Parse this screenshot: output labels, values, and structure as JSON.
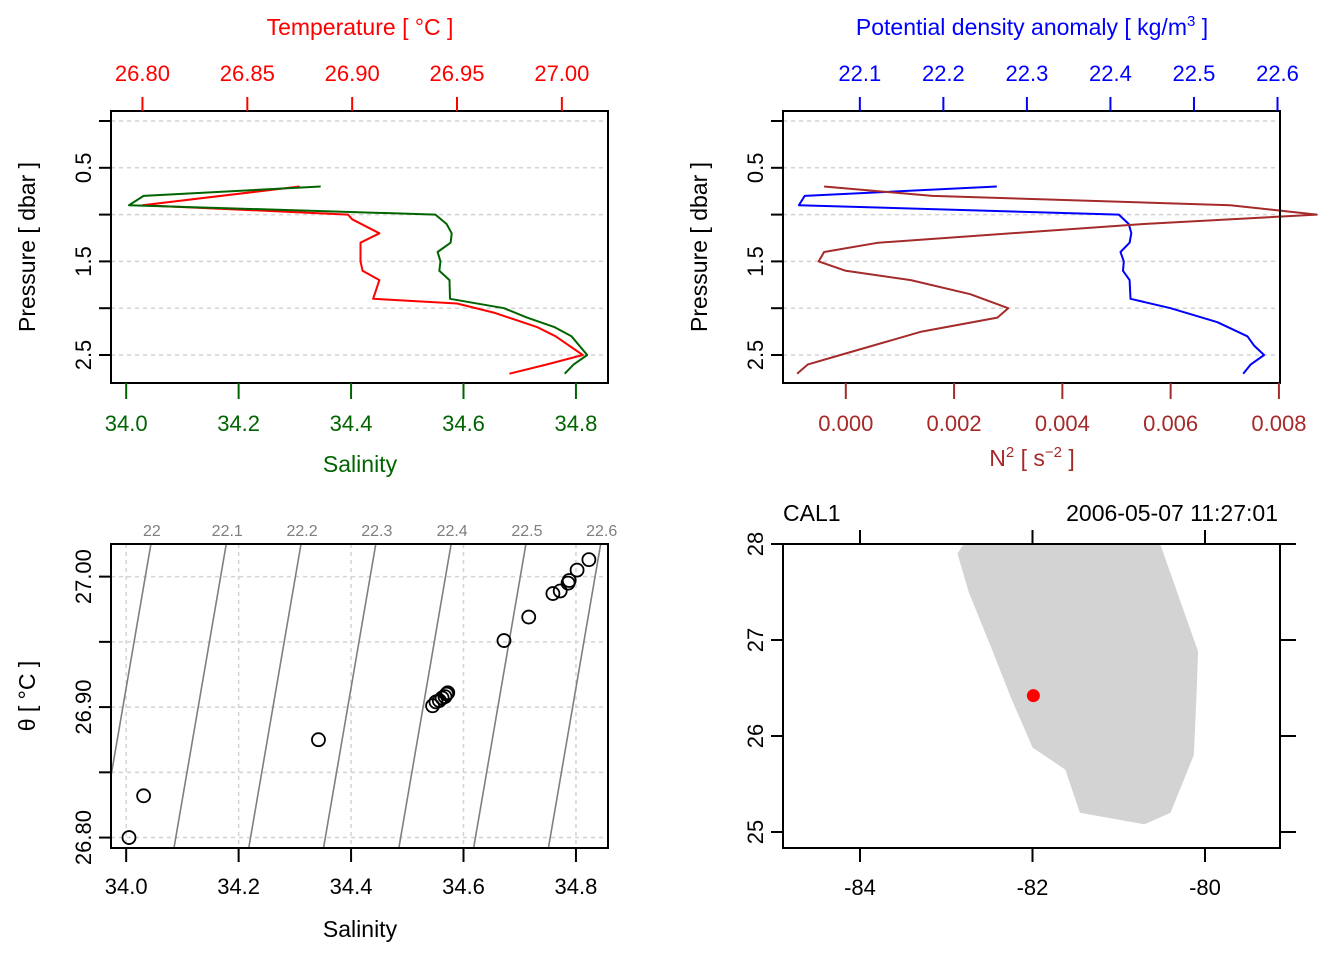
{
  "chart_data": [
    {
      "id": "profile-ts",
      "type": "line",
      "ylabel": "Pressure [ dbar ]",
      "y_ticks": [
        "0.5",
        "1.5",
        "2.5"
      ],
      "y_tick_values": [
        0.5,
        1.5,
        2.5
      ],
      "y_minor_ticks": [
        0,
        1,
        2
      ],
      "ylim": [
        2.8,
        -0.05
      ],
      "grid": true,
      "top_axis": {
        "label": "Temperature [ °C ]",
        "ticks": [
          "26.80",
          "26.85",
          "26.90",
          "26.95",
          "27.00"
        ],
        "tick_values": [
          26.8,
          26.85,
          26.9,
          26.95,
          27.0
        ],
        "color": "#ff0000",
        "range": [
          26.785,
          27.022
        ]
      },
      "bottom_axis": {
        "label": "Salinity",
        "ticks": [
          "34.0",
          "34.2",
          "34.4",
          "34.6",
          "34.8"
        ],
        "tick_values": [
          34.0,
          34.2,
          34.4,
          34.6,
          34.8
        ],
        "color": "#006400",
        "range": [
          33.973,
          34.857
        ]
      },
      "series": [
        {
          "name": "Temperature",
          "color": "#ff0000",
          "axis": "top",
          "points": [
            [
              26.875,
              0.7
            ],
            [
              26.8,
              0.9
            ],
            [
              26.898,
              1.0
            ],
            [
              26.9,
              1.05
            ],
            [
              26.913,
              1.2
            ],
            [
              26.904,
              1.3
            ],
            [
              26.904,
              1.5
            ],
            [
              26.905,
              1.6
            ],
            [
              26.913,
              1.7
            ],
            [
              26.91,
              1.9
            ],
            [
              26.95,
              1.95
            ],
            [
              26.968,
              2.05
            ],
            [
              26.988,
              2.2
            ],
            [
              26.997,
              2.3
            ],
            [
              27.01,
              2.5
            ],
            [
              26.993,
              2.6
            ],
            [
              26.975,
              2.7
            ]
          ]
        },
        {
          "name": "Salinity",
          "color": "#006400",
          "axis": "bottom",
          "points": [
            [
              34.346,
              0.7
            ],
            [
              34.031,
              0.8
            ],
            [
              34.005,
              0.9
            ],
            [
              34.55,
              1.0
            ],
            [
              34.57,
              1.1
            ],
            [
              34.579,
              1.2
            ],
            [
              34.577,
              1.3
            ],
            [
              34.554,
              1.4
            ],
            [
              34.559,
              1.5
            ],
            [
              34.557,
              1.6
            ],
            [
              34.575,
              1.7
            ],
            [
              34.576,
              1.9
            ],
            [
              34.672,
              2.0
            ],
            [
              34.713,
              2.1
            ],
            [
              34.761,
              2.2
            ],
            [
              34.792,
              2.3
            ],
            [
              34.82,
              2.5
            ],
            [
              34.796,
              2.6
            ],
            [
              34.78,
              2.7
            ]
          ]
        }
      ]
    },
    {
      "id": "profile-density-n2",
      "type": "line",
      "ylabel": "Pressure [ dbar ]",
      "y_ticks": [
        "0.5",
        "1.5",
        "2.5"
      ],
      "y_tick_values": [
        0.5,
        1.5,
        2.5
      ],
      "y_minor_ticks": [
        0,
        1,
        2
      ],
      "ylim": [
        2.8,
        -0.05
      ],
      "grid": true,
      "top_axis": {
        "label_main": "Potential density anomaly [ kg/m",
        "label_sup": "3",
        "label_end": " ]",
        "ticks": [
          "22.1",
          "22.2",
          "22.3",
          "22.4",
          "22.5",
          "22.6"
        ],
        "tick_values": [
          22.1,
          22.2,
          22.3,
          22.4,
          22.5,
          22.6
        ],
        "color": "#0000ff",
        "range": [
          22.008,
          22.603
        ]
      },
      "bottom_axis": {
        "label_main": "N",
        "label_sup": "2",
        "label_mid": " [ s",
        "label_sup2": "−2",
        "label_end": " ]",
        "ticks": [
          "0.000",
          "0.002",
          "0.004",
          "0.006",
          "0.008"
        ],
        "tick_values": [
          0.0,
          0.002,
          0.004,
          0.006,
          0.008
        ],
        "color": "#a52a2a",
        "range": [
          -0.00116,
          0.00802
        ]
      },
      "series": [
        {
          "name": "Potential density anomaly",
          "color": "#0000ff",
          "axis": "top",
          "points": [
            [
              22.264,
              0.7
            ],
            [
              22.034,
              0.8
            ],
            [
              22.027,
              0.9
            ],
            [
              22.41,
              1.0
            ],
            [
              22.422,
              1.1
            ],
            [
              22.425,
              1.2
            ],
            [
              22.423,
              1.3
            ],
            [
              22.412,
              1.4
            ],
            [
              22.416,
              1.5
            ],
            [
              22.415,
              1.6
            ],
            [
              22.423,
              1.7
            ],
            [
              22.424,
              1.9
            ],
            [
              22.472,
              2.0
            ],
            [
              22.528,
              2.15
            ],
            [
              22.564,
              2.3
            ],
            [
              22.572,
              2.4
            ],
            [
              22.584,
              2.5
            ],
            [
              22.568,
              2.6
            ],
            [
              22.559,
              2.7
            ]
          ]
        },
        {
          "name": "N2",
          "color": "#a52a2a",
          "axis": "bottom",
          "points": [
            [
              -0.0004,
              0.7
            ],
            [
              0.0016,
              0.8
            ],
            [
              0.0071,
              0.9
            ],
            [
              0.0087,
              1.0
            ],
            [
              0.0055,
              1.1
            ],
            [
              0.0006,
              1.3
            ],
            [
              -0.0004,
              1.4
            ],
            [
              -0.0005,
              1.5
            ],
            [
              0.0,
              1.6
            ],
            [
              0.0012,
              1.7
            ],
            [
              0.0023,
              1.85
            ],
            [
              0.003,
              2.0
            ],
            [
              0.0028,
              2.1
            ],
            [
              0.0014,
              2.25
            ],
            [
              -0.0001,
              2.5
            ],
            [
              -0.0007,
              2.6
            ],
            [
              -0.0009,
              2.7
            ]
          ]
        }
      ]
    },
    {
      "id": "ts-diagram",
      "type": "scatter",
      "xlabel": "Salinity",
      "ylabel": "θ [ °C ]",
      "x_ticks": [
        "34.0",
        "34.2",
        "34.4",
        "34.6",
        "34.8"
      ],
      "x_tick_values": [
        34.0,
        34.2,
        34.4,
        34.6,
        34.8
      ],
      "y_ticks": [
        "26.80",
        "26.90",
        "27.00"
      ],
      "y_tick_values": [
        26.8,
        26.9,
        27.0
      ],
      "y_minor_ticks": [
        26.85,
        26.95
      ],
      "xlim": [
        33.973,
        34.857
      ],
      "ylim": [
        26.792,
        27.025
      ],
      "grid": true,
      "isopycnals": {
        "labels": [
          "22",
          "22.1",
          "22.2",
          "22.3",
          "22.4",
          "22.5",
          "22.6"
        ],
        "values": [
          22.0,
          22.1,
          22.2,
          22.3,
          22.4,
          22.5,
          22.6
        ],
        "color": "#7f7f7f"
      },
      "points": [
        [
          34.005,
          26.8
        ],
        [
          34.031,
          26.832
        ],
        [
          34.342,
          26.875
        ],
        [
          34.545,
          26.901
        ],
        [
          34.551,
          26.904
        ],
        [
          34.557,
          26.905
        ],
        [
          34.562,
          26.907
        ],
        [
          34.567,
          26.908
        ],
        [
          34.57,
          26.91
        ],
        [
          34.572,
          26.911
        ],
        [
          34.672,
          26.951
        ],
        [
          34.716,
          26.969
        ],
        [
          34.759,
          26.987
        ],
        [
          34.772,
          26.989
        ],
        [
          34.786,
          26.995
        ],
        [
          34.788,
          26.997
        ],
        [
          34.802,
          27.005
        ],
        [
          34.823,
          27.013
        ]
      ]
    },
    {
      "id": "station-map",
      "type": "map",
      "station": "CAL1",
      "datetime": "2006-05-07 11:27:01",
      "x_ticks": [
        "-84",
        "-82",
        "-80"
      ],
      "x_tick_values": [
        -84,
        -82,
        -80
      ],
      "y_ticks": [
        "25",
        "26",
        "27",
        "28"
      ],
      "y_tick_values": [
        25,
        26,
        27,
        28
      ],
      "xlim": [
        -84.89,
        -79.13
      ],
      "ylim": [
        24.83,
        28.0
      ],
      "land_color": "#d3d3d3",
      "station_color": "#ff0000",
      "station_location": {
        "lon": -81.99,
        "lat": 26.42
      },
      "coastline": [
        [
          -82.8,
          28.0
        ],
        [
          -82.87,
          27.9
        ],
        [
          -82.74,
          27.5
        ],
        [
          -82.47,
          26.9
        ],
        [
          -82.25,
          26.4
        ],
        [
          -82.0,
          25.88
        ],
        [
          -81.62,
          25.65
        ],
        [
          -81.45,
          25.2
        ],
        [
          -80.7,
          25.08
        ],
        [
          -80.4,
          25.2
        ],
        [
          -80.13,
          25.8
        ],
        [
          -80.1,
          26.4
        ],
        [
          -80.08,
          26.88
        ],
        [
          -80.52,
          28.0
        ]
      ]
    }
  ]
}
